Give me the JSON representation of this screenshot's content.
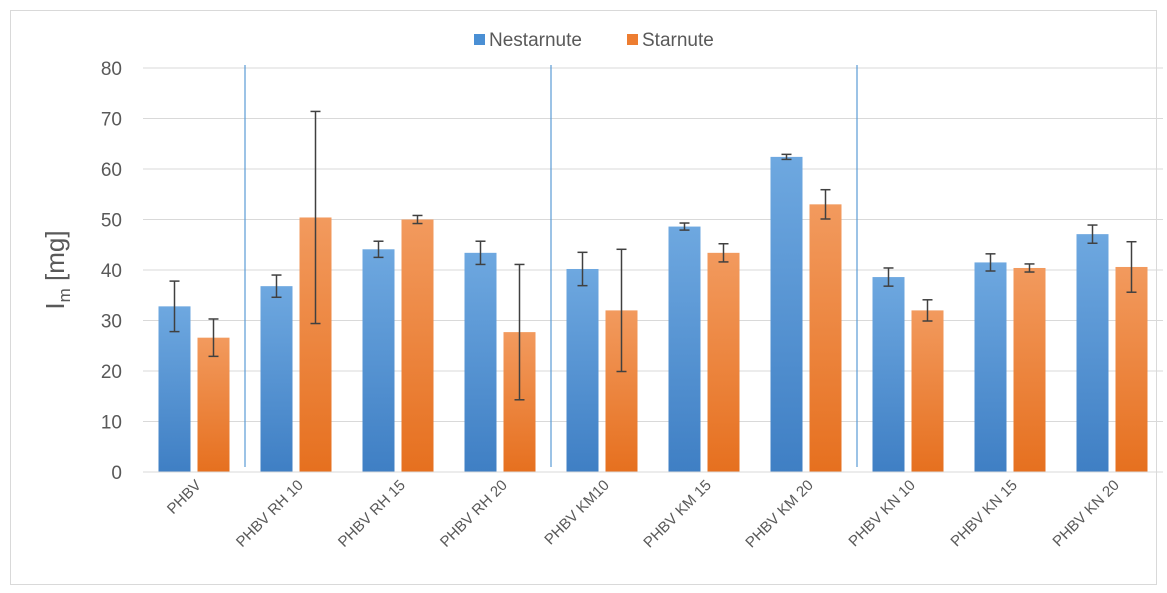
{
  "chart_data": {
    "type": "bar",
    "ylabel_main": "I",
    "ylabel_sub": "m",
    "ylabel_unit": " [mg]",
    "categories": [
      "PHBV",
      "PHBV RH 10",
      "PHBV RH 15",
      "PHBV RH 20",
      "PHBV KM10",
      "PHBV KM 15",
      "PHBV KM 20",
      "PHBV KN 10",
      "PHBV KN 15",
      "PHBV KN 20"
    ],
    "series": [
      {
        "name": "Nestarnute",
        "color": "#4a8fd4",
        "values": [
          32.8,
          36.8,
          44.1,
          43.4,
          40.2,
          48.6,
          62.4,
          38.6,
          41.5,
          47.1
        ],
        "errors": [
          5.0,
          2.2,
          1.6,
          2.3,
          3.3,
          0.7,
          0.5,
          1.8,
          1.7,
          1.8
        ]
      },
      {
        "name": "Starnute",
        "color": "#ed7d31",
        "values": [
          26.6,
          50.4,
          50.0,
          27.7,
          32.0,
          43.4,
          53.0,
          32.0,
          40.4,
          40.6
        ],
        "errors": [
          3.7,
          21.0,
          0.8,
          13.4,
          12.1,
          1.8,
          2.9,
          2.1,
          0.8,
          5.0
        ]
      }
    ],
    "ylim": [
      0,
      80
    ],
    "yticks": [
      0,
      10,
      20,
      30,
      40,
      50,
      60,
      70,
      80
    ],
    "grid": true,
    "legend": "top",
    "group_separators_after": [
      0,
      3,
      6
    ]
  }
}
